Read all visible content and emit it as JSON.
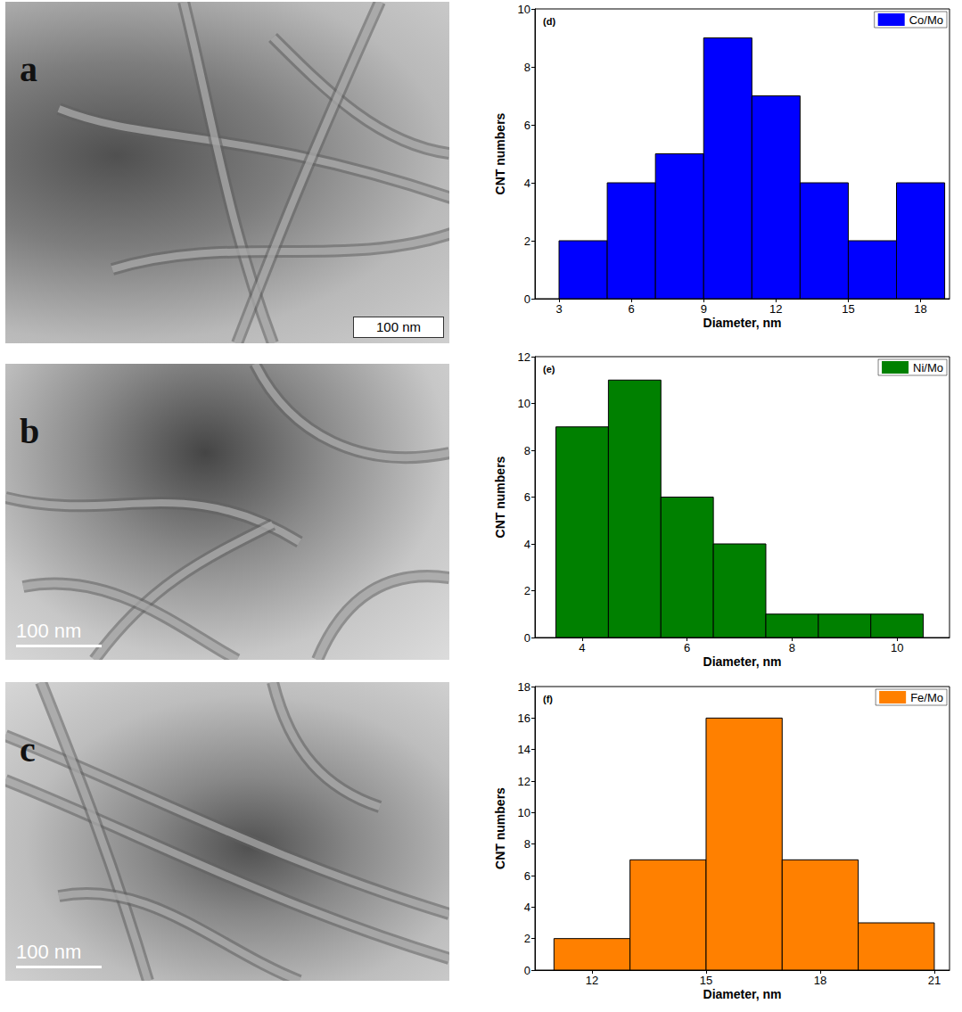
{
  "chart_data": [
    {
      "type": "histogram",
      "title": "(d)",
      "xlabel": "Diameter, nm",
      "ylabel": "CNT numbers",
      "bins": [
        3,
        5,
        7,
        9,
        11,
        13,
        15,
        17,
        19
      ],
      "series": [
        {
          "name": "Co/Mo",
          "color": "#0000ff",
          "values": [
            2,
            4,
            5,
            9,
            7,
            4,
            2,
            4
          ]
        }
      ],
      "xlim": [
        2,
        19.2
      ],
      "xticks": [
        3,
        6,
        9,
        12,
        15,
        18
      ],
      "ylim": [
        0,
        10
      ],
      "yticks": [
        0,
        2,
        4,
        6,
        8,
        10
      ],
      "legend": "upper right",
      "grid": false
    },
    {
      "type": "histogram",
      "title": "(e)",
      "xlabel": "Diameter, nm",
      "ylabel": "CNT numbers",
      "bins": [
        3.5,
        4.5,
        5.5,
        6.5,
        7.5,
        8.5,
        9.5,
        10.5
      ],
      "series": [
        {
          "name": "Ni/Mo",
          "color": "#008000",
          "values": [
            9,
            11,
            6,
            4,
            1,
            1,
            1
          ]
        }
      ],
      "xlim": [
        3.1,
        11
      ],
      "xticks": [
        4,
        6,
        8,
        10
      ],
      "ylim": [
        0,
        12
      ],
      "yticks": [
        0,
        2,
        4,
        6,
        8,
        10,
        12
      ],
      "legend": "upper right",
      "grid": false
    },
    {
      "type": "histogram",
      "title": "(f)",
      "xlabel": "Diameter, nm",
      "ylabel": "CNT numbers",
      "bins": [
        11,
        13,
        15,
        17,
        19,
        21
      ],
      "series": [
        {
          "name": "Fe/Mo",
          "color": "#ff8000",
          "values": [
            2,
            7,
            16,
            7,
            3
          ]
        }
      ],
      "xlim": [
        10.5,
        21.4
      ],
      "xticks": [
        12,
        15,
        18,
        21
      ],
      "ylim": [
        0,
        18
      ],
      "yticks": [
        0,
        2,
        4,
        6,
        8,
        10,
        12,
        14,
        16,
        18
      ],
      "legend": "upper right",
      "grid": false
    }
  ],
  "micrographs": [
    {
      "letter": "a",
      "scale_bar": "100 nm"
    },
    {
      "letter": "b",
      "scale_bar": "100 nm"
    },
    {
      "letter": "c",
      "scale_bar": "100 nm"
    }
  ]
}
